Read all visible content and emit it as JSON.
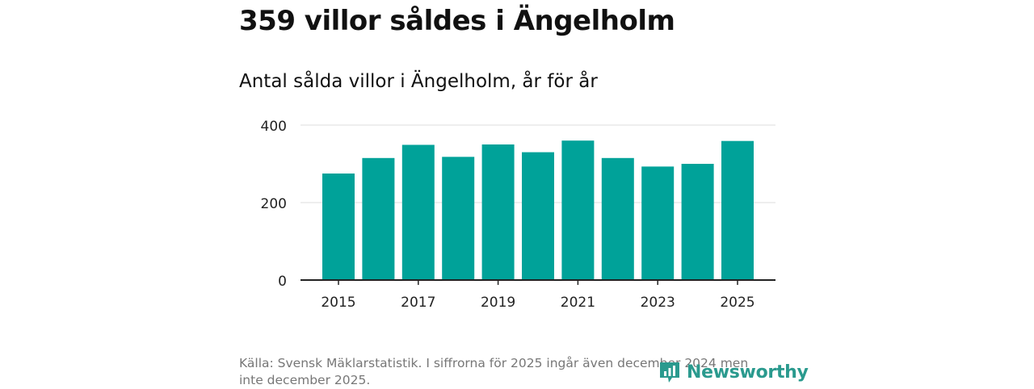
{
  "title": "359 villor såldes i Ängelholm",
  "subtitle": "Antal sålda villor i Ängelholm, år för år",
  "source": "Källa: Svensk Mäklarstatistik. I siffrorna för 2025 ingår även december 2024 men inte december 2025.",
  "logo": {
    "text": "Newsworthy",
    "icon": "newsworthy-logo-icon"
  },
  "colors": {
    "bar": "#00a299",
    "grid": "#dddddd",
    "axis": "#222222",
    "logo": "#2a9a8e"
  },
  "chart_data": {
    "type": "bar",
    "title": "Antal sålda villor i Ängelholm, år för år",
    "xlabel": "",
    "ylabel": "",
    "categories": [
      "2015",
      "2016",
      "2017",
      "2018",
      "2019",
      "2020",
      "2021",
      "2022",
      "2023",
      "2024",
      "2025"
    ],
    "values": [
      275,
      315,
      349,
      318,
      350,
      330,
      360,
      315,
      293,
      300,
      359
    ],
    "x_tick_labels": [
      "2015",
      "2017",
      "2019",
      "2021",
      "2023",
      "2025"
    ],
    "y_ticks": [
      0,
      200,
      400
    ],
    "ylim": [
      0,
      400
    ],
    "grid": true
  }
}
